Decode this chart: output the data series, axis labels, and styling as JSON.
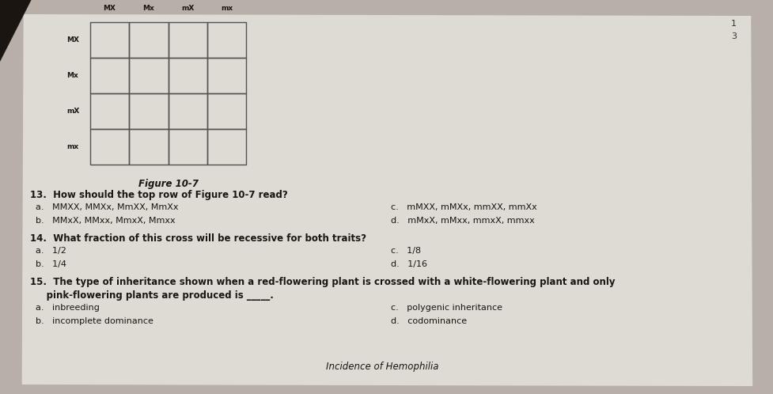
{
  "background_color": "#b8b0a8",
  "page_color": "#dedad4",
  "title": "Figure 10-7",
  "grid_rows": 4,
  "grid_cols": 4,
  "col_headers": [
    "MX",
    "Mx",
    "mX",
    "mx"
  ],
  "row_headers": [
    "MX",
    "Mx",
    "mX",
    "mx"
  ],
  "question_13": "13.  How should the top row of Figure 10-7 read?",
  "q13a": "a.   MMXX, MMXx, MmXX, MmXx",
  "q13b": "b.   MMxX, MMxx, MmxX, Mmxx",
  "q13c": "c.   mMXX, mMXx, mmXX, mmXx",
  "q13d": "d.   mMxX, mMxx, mmxX, mmxx",
  "question_14": "14.  What fraction of this cross will be recessive for both traits?",
  "q14a": "a.   1/2",
  "q14b": "b.   1/4",
  "q14c": "c.   1/8",
  "q14d": "d.   1/16",
  "q15_line1": "15.  The type of inheritance shown when a red-flowering plant is crossed with a white-flowering plant and only",
  "q15_line2": "     pink-flowering plants are produced is _____.",
  "q15a": "a.   inbreeding",
  "q15b": "b.   incomplete dominance",
  "q15c": "c.   polygenic inheritance",
  "q15d": "d.   codominance",
  "footer": "Incidence of Hemophilia",
  "text_color": "#1a1510",
  "grid_line_color": "#555050",
  "corner_numbers": [
    "1",
    "3"
  ],
  "header_fontsize": 6.5,
  "question_fontsize": 8.5,
  "answer_fontsize": 8.0,
  "title_fontsize": 8.5
}
